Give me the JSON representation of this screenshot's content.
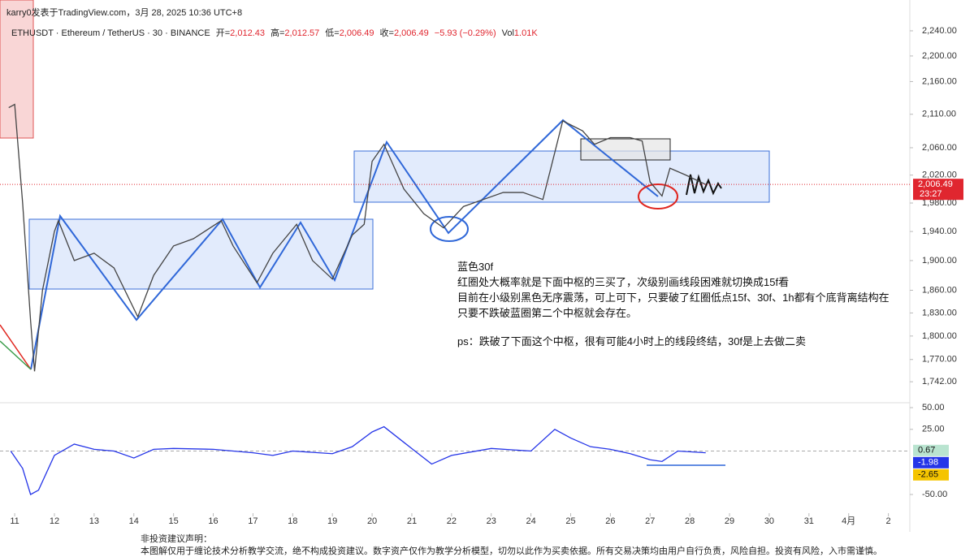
{
  "header": {
    "byline": "karry0发表于TradingView.com，3月 28, 2025 10:36 UTC+8",
    "symbol": "ETHUSDT · Ethereum / TetherUS · 30 · BINANCE",
    "ohlc": [
      {
        "label": "开=",
        "value": "2,012.43"
      },
      {
        "label": "高=",
        "value": "2,012.57"
      },
      {
        "label": "低=",
        "value": "2,006.49"
      },
      {
        "label": "收=",
        "value": "2,006.49"
      },
      {
        "label": "",
        "value": "−5.93 (−0.29%)"
      },
      {
        "label": "Vol",
        "value": "1.01K"
      }
    ]
  },
  "annotation": [
    "蓝色30f",
    "红圈处大概率就是下面中枢的三买了，次级别画线段困难就切换成15f看",
    "目前在小级别黑色无序震荡，可上可下，只要破了红圈低点15f、30f、1h都有个底背离结构在",
    "只要不跌破蓝圈第二个中枢就会存在。",
    "ps：跌破了下面这个中枢，很有可能4小时上的线段终结，30f是上去做二卖"
  ],
  "disclaimer": [
    "非投资建议声明：",
    "本图解仅用于缠论技术分析教学交流，绝不构成投资建议。数字资产仅作为教学分析模型，切勿以此作为买卖依据。所有交易决策均由用户自行负责，风险自担。投资有风险，入市需谨慎。"
  ],
  "chart_data": [
    {
      "type": "line",
      "log_scale": true,
      "xlim": [
        10.63,
        33.54
      ],
      "ylim": [
        1717,
        2253
      ],
      "xticks": [
        11,
        12,
        13,
        14,
        15,
        16,
        17,
        18,
        19,
        20,
        21,
        22,
        23,
        24,
        25,
        26,
        27,
        28,
        29,
        30,
        31,
        {
          "value": 32,
          "label": "4月"
        },
        {
          "value": 33,
          "label": "2"
        }
      ],
      "yticks": [
        {
          "value": 2240,
          "label": "2,240.00"
        },
        {
          "value": 2200,
          "label": "2,200.00"
        },
        {
          "value": 2160,
          "label": "2,160.00"
        },
        {
          "value": 2110,
          "label": "2,110.00"
        },
        {
          "value": 2060,
          "label": "2,060.00"
        },
        {
          "value": 2020,
          "label": "2,020.00"
        },
        {
          "value": 1980,
          "label": "1,980.00"
        },
        {
          "value": 1940,
          "label": "1,940.00"
        },
        {
          "value": 1900,
          "label": "1,900.00"
        },
        {
          "value": 1860,
          "label": "1,860.00"
        },
        {
          "value": 1830,
          "label": "1,830.00"
        },
        {
          "value": 1800,
          "label": "1,800.00"
        },
        {
          "value": 1770,
          "label": "1,770.00"
        },
        {
          "value": 1742,
          "label": "1,742.00"
        }
      ],
      "last_price": {
        "value": 2006.49,
        "label": "2,006.49"
      },
      "countdown": "23:27",
      "series": [
        {
          "name": "ETHUSDT",
          "color": "#444444",
          "x": [
            10.85,
            11.0,
            11.2,
            11.4,
            11.5,
            11.7,
            12.0,
            12.1,
            12.5,
            13,
            13.5,
            14.1,
            14.5,
            15,
            15.5,
            16.2,
            16.5,
            17.1,
            17.5,
            18.1,
            18.5,
            19.0,
            19.5,
            19.8,
            20.0,
            20.3,
            20.8,
            21.3,
            21.8,
            22.3,
            22.8,
            23.3,
            23.8,
            24.3,
            24.5,
            24.8,
            25.3,
            25.6,
            26,
            26.5,
            26.8,
            27.0,
            27.3,
            27.5,
            27.9,
            28.4
          ],
          "values": [
            2120,
            2125,
            1980,
            1820,
            1755,
            1860,
            1940,
            1955,
            1900,
            1910,
            1890,
            1825,
            1880,
            1920,
            1930,
            1955,
            1920,
            1870,
            1910,
            1950,
            1900,
            1875,
            1935,
            1950,
            2040,
            2065,
            2000,
            1965,
            1945,
            1975,
            1985,
            1995,
            1995,
            1985,
            2030,
            2100,
            2085,
            2065,
            2075,
            2075,
            2070,
            2010,
            1990,
            2030,
            2020,
            2006.49
          ]
        }
      ]
    },
    {
      "type": "line",
      "xlim": [
        10.63,
        33.54
      ],
      "ylim": [
        -71.5,
        54.7
      ],
      "yticks": [
        {
          "value": 50,
          "label": "50.00"
        },
        {
          "value": 25,
          "label": "25.00"
        },
        {
          "value": -50,
          "label": "-50.00"
        }
      ],
      "badges": [
        {
          "value": 0.67,
          "color": "#b9e4d0"
        },
        {
          "value": -1.98,
          "color": "#2535e8"
        },
        {
          "value": -2.65,
          "color": "#f5c400"
        }
      ],
      "series": [
        {
          "name": "MACD",
          "color": "#2535e8",
          "x": [
            10.9,
            11.2,
            11.4,
            11.6,
            12,
            12.5,
            13,
            13.5,
            14,
            14.5,
            15,
            16,
            17,
            17.5,
            18,
            19,
            19.5,
            20,
            20.3,
            20.8,
            21.5,
            22,
            23,
            24,
            24.6,
            25,
            25.5,
            26,
            26.5,
            27,
            27.3,
            27.7,
            28.4
          ],
          "values": [
            0,
            -20,
            -50,
            -45,
            -5,
            8,
            2,
            0,
            -8,
            2,
            3,
            2,
            -2,
            -5,
            0,
            -3,
            5,
            22,
            28,
            10,
            -15,
            -5,
            3,
            0,
            25,
            15,
            5,
            2,
            -3,
            -10,
            -12,
            0,
            -2
          ]
        }
      ]
    }
  ]
}
